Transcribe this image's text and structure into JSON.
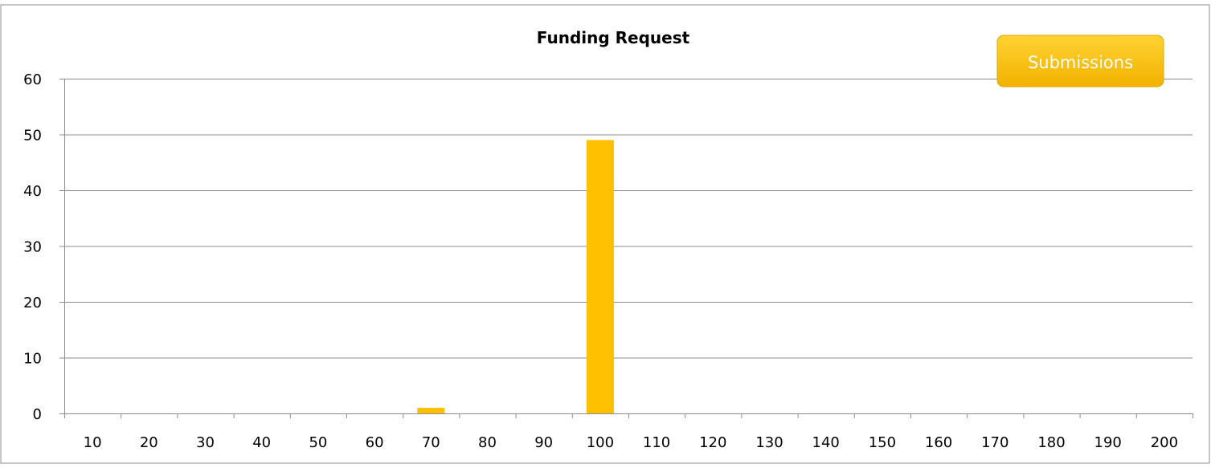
{
  "chart_data": {
    "type": "bar",
    "title": "Funding Request",
    "xlabel": "",
    "ylabel": "",
    "categories": [
      "10",
      "20",
      "30",
      "40",
      "50",
      "60",
      "70",
      "80",
      "90",
      "100",
      "110",
      "120",
      "130",
      "140",
      "150",
      "160",
      "170",
      "180",
      "190",
      "200"
    ],
    "series": [
      {
        "name": "Submissions",
        "values": [
          0,
          0,
          0,
          0,
          0,
          0,
          1,
          0,
          0,
          49,
          0,
          0,
          0,
          0,
          0,
          0,
          0,
          0,
          0,
          0
        ]
      }
    ],
    "ylim": [
      0,
      60
    ],
    "yticks": [
      0,
      10,
      20,
      30,
      40,
      50,
      60
    ],
    "grid": true,
    "legend_position": "top-right"
  },
  "colors": {
    "bar": "#FFC000",
    "legend_top": "#FFD233",
    "legend_bottom": "#F2B200",
    "gridline": "#8C8C8C",
    "axis": "#8C8C8C",
    "text": "#000000",
    "border": "#8C8C8C"
  }
}
